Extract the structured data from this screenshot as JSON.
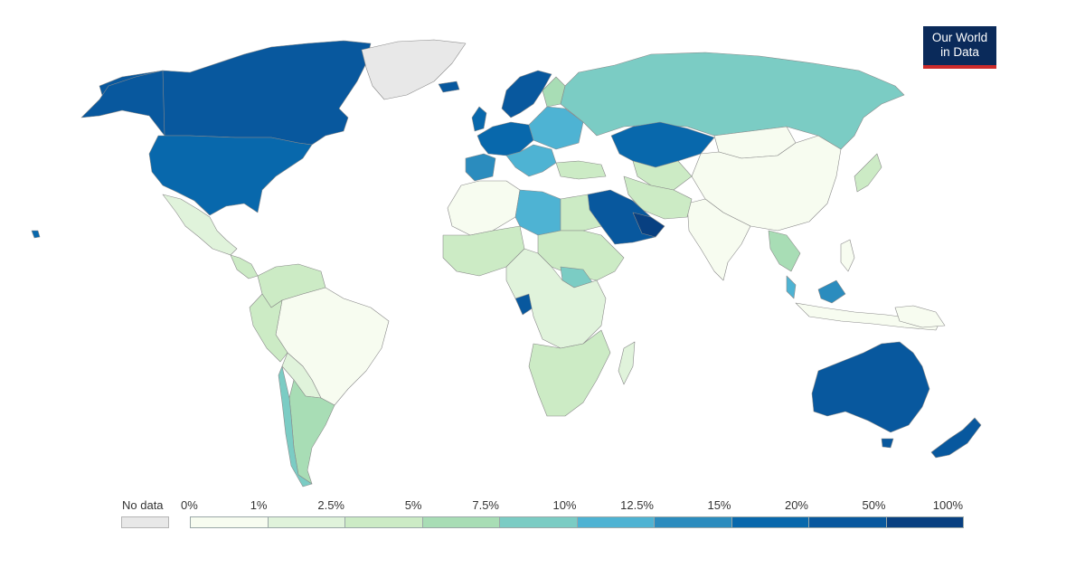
{
  "logo": {
    "line1": "Our World",
    "line2": "in Data"
  },
  "legend": {
    "no_data_label": "No data",
    "no_data_color": "#e8e8e8",
    "ticks": [
      "0%",
      "1%",
      "2.5%",
      "5%",
      "7.5%",
      "10%",
      "12.5%",
      "15%",
      "20%",
      "50%",
      "100%"
    ],
    "bins": [
      {
        "range": "0%–1%",
        "color": "#f7fcf0"
      },
      {
        "range": "1%–2.5%",
        "color": "#e0f3db"
      },
      {
        "range": "2.5%–5%",
        "color": "#ccebc5"
      },
      {
        "range": "5%–7.5%",
        "color": "#a8ddb5"
      },
      {
        "range": "7.5%–10%",
        "color": "#7bccc4"
      },
      {
        "range": "10%–12.5%",
        "color": "#4eb3d3"
      },
      {
        "range": "12.5%–15%",
        "color": "#2b8cbe"
      },
      {
        "range": "15%–20%",
        "color": "#0868ac"
      },
      {
        "range": "20%–50%",
        "color": "#08589e"
      },
      {
        "range": "50%–100%",
        "color": "#084081"
      }
    ]
  },
  "map_colors": {
    "ocean": "#ffffff",
    "no_data": "#e8e8e8"
  }
}
